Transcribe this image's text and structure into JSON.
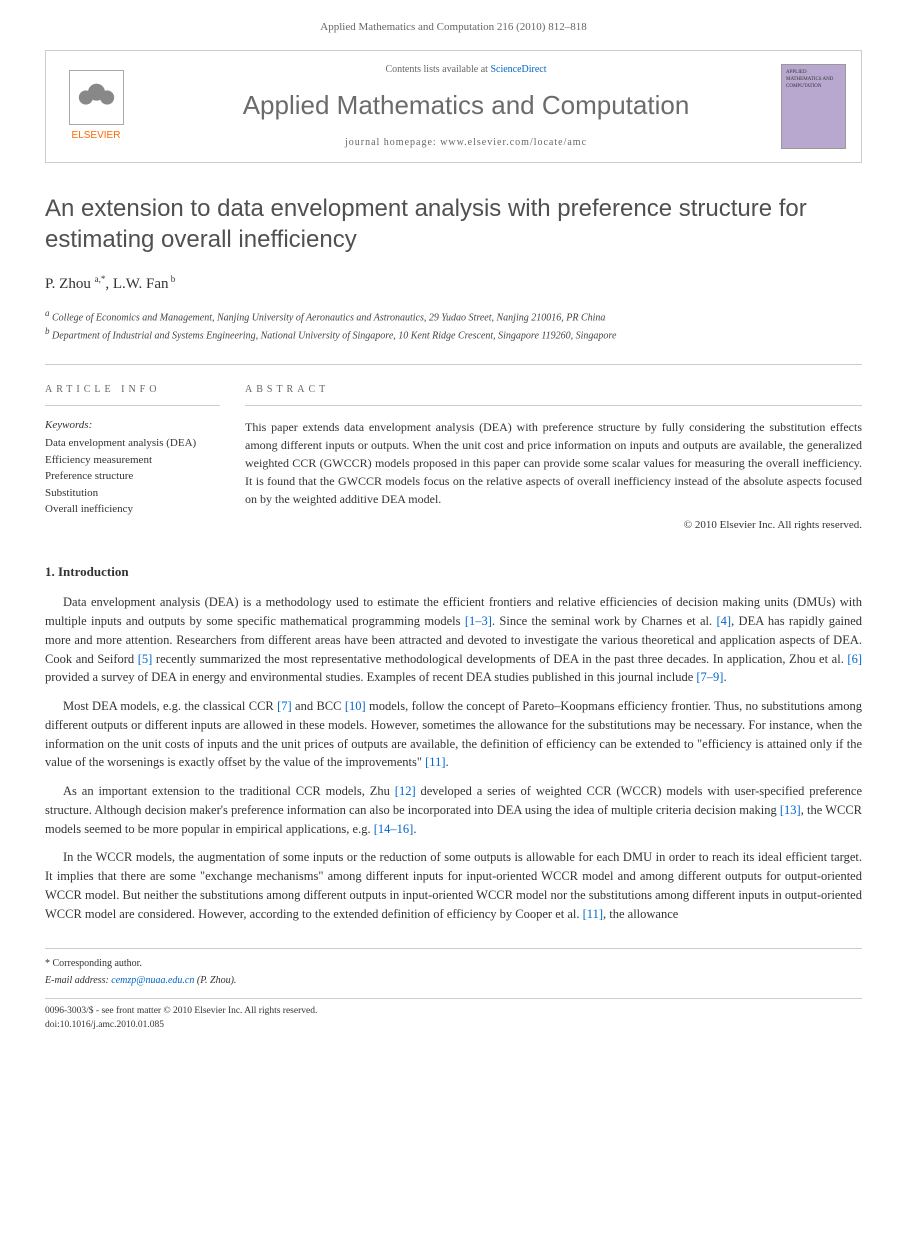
{
  "page_header": "Applied Mathematics and Computation 216 (2010) 812–818",
  "journal_box": {
    "elsevier": "ELSEVIER",
    "contents_prefix": "Contents lists available at ",
    "contents_link": "ScienceDirect",
    "journal_name": "Applied Mathematics and Computation",
    "homepage_label": "journal homepage: www.elsevier.com/locate/amc",
    "cover_text": "APPLIED MATHEMATICS AND COMPUTATION"
  },
  "article": {
    "title": "An extension to data envelopment analysis with preference structure for estimating overall inefficiency",
    "authors_html": "P. Zhou <sup>a,*</sup>, L.W. Fan<sup> b</sup>",
    "affiliations": [
      "a College of Economics and Management, Nanjing University of Aeronautics and Astronautics, 29 Yudao Street, Nanjing 210016, PR China",
      "b Department of Industrial and Systems Engineering, National University of Singapore, 10 Kent Ridge Crescent, Singapore 119260, Singapore"
    ]
  },
  "info": {
    "heading": "ARTICLE INFO",
    "keywords_label": "Keywords:",
    "keywords": [
      "Data envelopment analysis (DEA)",
      "Efficiency measurement",
      "Preference structure",
      "Substitution",
      "Overall inefficiency"
    ]
  },
  "abstract": {
    "heading": "ABSTRACT",
    "text": "This paper extends data envelopment analysis (DEA) with preference structure by fully considering the substitution effects among different inputs or outputs. When the unit cost and price information on inputs and outputs are available, the generalized weighted CCR (GWCCR) models proposed in this paper can provide some scalar values for measuring the overall inefficiency. It is found that the GWCCR models focus on the relative aspects of overall inefficiency instead of the absolute aspects focused on by the weighted additive DEA model.",
    "copyright": "© 2010 Elsevier Inc. All rights reserved."
  },
  "section1": {
    "heading": "1. Introduction",
    "paragraphs": [
      "Data envelopment analysis (DEA) is a methodology used to estimate the efficient frontiers and relative efficiencies of decision making units (DMUs) with multiple inputs and outputs by some specific mathematical programming models <span class='ref-link'>[1–3]</span>. Since the seminal work by Charnes et al. <span class='ref-link'>[4]</span>, DEA has rapidly gained more and more attention. Researchers from different areas have been attracted and devoted to investigate the various theoretical and application aspects of DEA. Cook and Seiford <span class='ref-link'>[5]</span> recently summarized the most representative methodological developments of DEA in the past three decades. In application, Zhou et al. <span class='ref-link'>[6]</span> provided a survey of DEA in energy and environmental studies. Examples of recent DEA studies published in this journal include <span class='ref-link'>[7–9]</span>.",
      "Most DEA models, e.g. the classical CCR <span class='ref-link'>[7]</span> and BCC <span class='ref-link'>[10]</span> models, follow the concept of Pareto–Koopmans efficiency frontier. Thus, no substitutions among different outputs or different inputs are allowed in these models. However, sometimes the allowance for the substitutions may be necessary. For instance, when the information on the unit costs of inputs and the unit prices of outputs are available, the definition of efficiency can be extended to \"efficiency is attained only if the value of the worsenings is exactly offset by the value of the improvements\" <span class='ref-link'>[11]</span>.",
      "As an important extension to the traditional CCR models, Zhu <span class='ref-link'>[12]</span> developed a series of weighted CCR (WCCR) models with user-specified preference structure. Although decision maker's preference information can also be incorporated into DEA using the idea of multiple criteria decision making <span class='ref-link'>[13]</span>, the WCCR models seemed to be more popular in empirical applications, e.g. <span class='ref-link'>[14–16]</span>.",
      "In the WCCR models, the augmentation of some inputs or the reduction of some outputs is allowable for each DMU in order to reach its ideal efficient target. It implies that there are some \"exchange mechanisms\" among different inputs for input-oriented WCCR model and among different outputs for output-oriented WCCR model. But neither the substitutions among different outputs in input-oriented WCCR model nor the substitutions among different inputs in output-oriented WCCR model are considered. However, according to the extended definition of efficiency by Cooper et al. <span class='ref-link'>[11]</span>, the allowance"
    ]
  },
  "footer": {
    "corresponding": "* Corresponding author.",
    "email_label": "E-mail address: ",
    "email": "cemzp@nuaa.edu.cn",
    "email_suffix": " (P. Zhou).",
    "copyright_line": "0096-3003/$ - see front matter © 2010 Elsevier Inc. All rights reserved.",
    "doi": "doi:10.1016/j.amc.2010.01.085"
  },
  "colors": {
    "link": "#0066cc",
    "elsevier_orange": "#ff6600",
    "title_gray": "#505050",
    "journal_gray": "#6b6b6b",
    "cover_bg": "#b8a8d0"
  }
}
